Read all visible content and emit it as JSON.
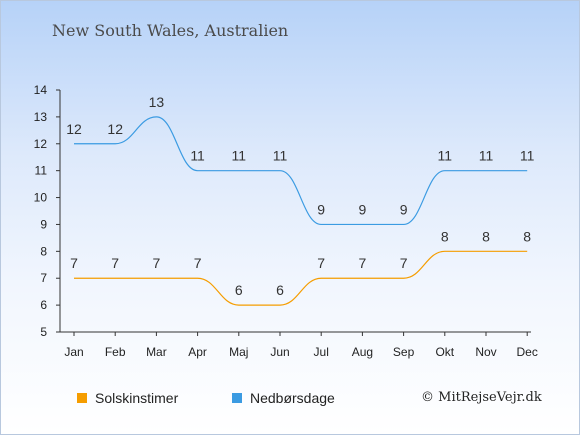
{
  "chart_data": {
    "type": "line",
    "title": "New South Wales, Australien",
    "categories": [
      "Jan",
      "Feb",
      "Mar",
      "Apr",
      "Maj",
      "Jun",
      "Jul",
      "Aug",
      "Sep",
      "Okt",
      "Nov",
      "Dec"
    ],
    "ylim": [
      5,
      14
    ],
    "yticks": [
      5,
      6,
      7,
      8,
      9,
      10,
      11,
      12,
      13,
      14
    ],
    "series": [
      {
        "name": "Solskinstimer",
        "color": "#f59d00",
        "values": [
          7,
          7,
          7,
          7,
          6,
          6,
          7,
          7,
          7,
          8,
          8,
          8
        ]
      },
      {
        "name": "Nedbørsdage",
        "color": "#3b9be2",
        "values": [
          12,
          12,
          13,
          11,
          11,
          11,
          9,
          9,
          9,
          11,
          11,
          11
        ]
      }
    ],
    "legend": "bottom-left",
    "grid": false
  },
  "credit": "© MitRejseVejr.dk"
}
